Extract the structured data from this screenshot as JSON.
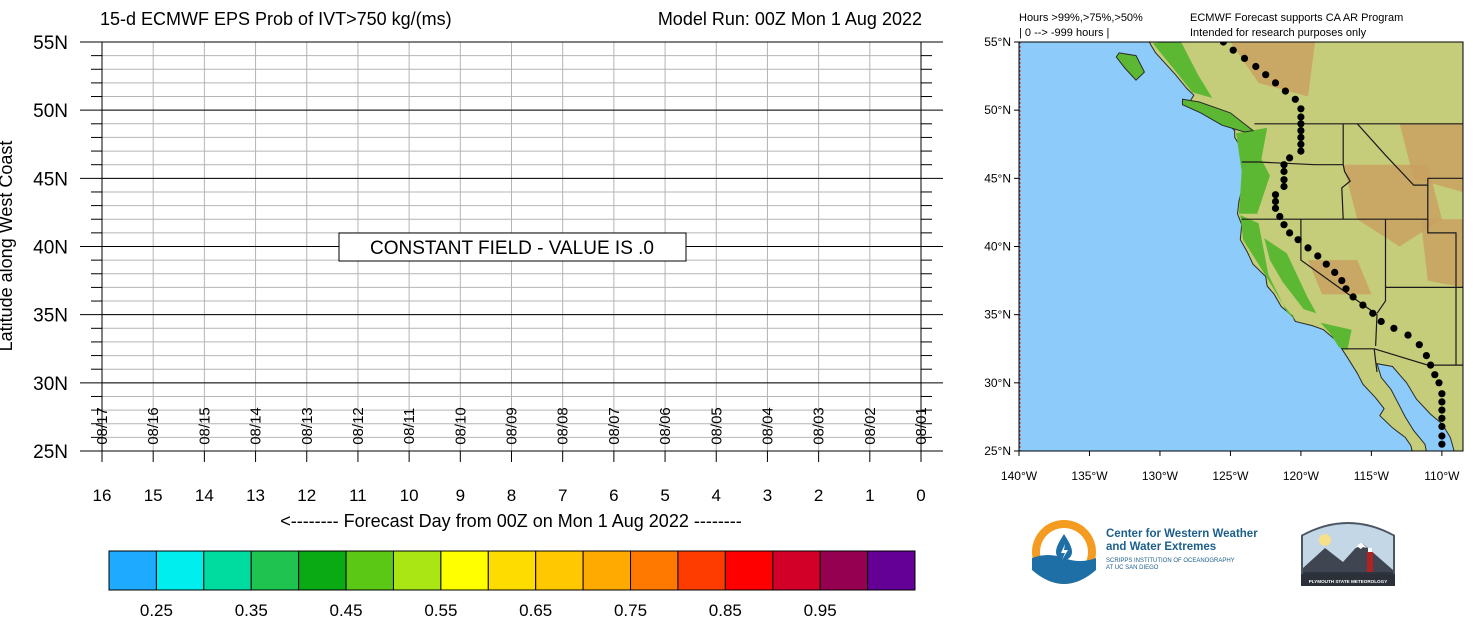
{
  "chart_data": [
    {
      "type": "heatmap",
      "title": "15-d ECMWF EPS Prob of IVT>750 kg/(ms)",
      "model_run": "Model Run: 00Z Mon 1 Aug 2022",
      "ylabel": "Latitude along West Coast",
      "xlabel": "<-------- Forecast Day from 00Z on Mon 1 Aug 2022 --------",
      "x_ticks": [
        "16",
        "15",
        "14",
        "13",
        "12",
        "11",
        "10",
        "9",
        "8",
        "7",
        "6",
        "5",
        "4",
        "3",
        "2",
        "1",
        "0"
      ],
      "x_dates": [
        "08/17",
        "08/16",
        "08/15",
        "08/14",
        "08/13",
        "08/12",
        "08/11",
        "08/10",
        "08/09",
        "08/08",
        "08/07",
        "08/06",
        "08/05",
        "08/04",
        "08/03",
        "08/02",
        "08/01"
      ],
      "y_ticks": [
        "55N",
        "50N",
        "45N",
        "40N",
        "35N",
        "30N",
        "25N"
      ],
      "xlim": [
        16,
        0
      ],
      "ylim": [
        25,
        55
      ],
      "annotation": "CONSTANT FIELD - VALUE IS .0",
      "values": [],
      "colorbar": {
        "labels": [
          "0.25",
          "0.35",
          "0.45",
          "0.55",
          "0.65",
          "0.75",
          "0.85",
          "0.95"
        ],
        "colors": [
          "#1eaaff",
          "#00eeee",
          "#00dca0",
          "#1ec350",
          "#0aaa14",
          "#5ac814",
          "#aae614",
          "#ffff00",
          "#ffdc00",
          "#ffc800",
          "#ffaa00",
          "#ff7800",
          "#ff3c00",
          "#ff0000",
          "#d20028",
          "#960050",
          "#640096"
        ]
      }
    },
    {
      "type": "map",
      "header_left": [
        "Hours >99%,>75%,>50%",
        "| 0 --> -999 hours        |"
      ],
      "header_right": [
        "ECMWF Forecast supports CA AR Program",
        "Intended for research purposes only"
      ],
      "lon_ticks": [
        "140°W",
        "135°W",
        "130°W",
        "125°W",
        "120°W",
        "115°W",
        "110°W"
      ],
      "lat_ticks": [
        "55°N",
        "50°N",
        "45°N",
        "40°N",
        "35°N",
        "30°N",
        "25°N"
      ],
      "lon_range": [
        -140,
        -108.5
      ],
      "lat_range": [
        25,
        55
      ],
      "colors": {
        "ocean": "#8ccbfa",
        "land_low": "#5cb833",
        "land_mid": "#c5cc7a",
        "land_high": "#c9a060",
        "points": "#000000"
      },
      "transect_points": [
        [
          -125.5,
          55.0
        ],
        [
          -124.8,
          54.4
        ],
        [
          -124.0,
          53.8
        ],
        [
          -123.2,
          53.2
        ],
        [
          -122.5,
          52.6
        ],
        [
          -121.8,
          52.0
        ],
        [
          -121.1,
          51.4
        ],
        [
          -120.4,
          50.8
        ],
        [
          -120.0,
          50.1
        ],
        [
          -120.0,
          49.5
        ],
        [
          -120.0,
          49.0
        ],
        [
          -120.0,
          48.5
        ],
        [
          -120.0,
          48.0
        ],
        [
          -120.0,
          47.5
        ],
        [
          -120.0,
          47.0
        ],
        [
          -120.8,
          46.5
        ],
        [
          -121.2,
          46.0
        ],
        [
          -121.2,
          45.5
        ],
        [
          -121.2,
          44.9
        ],
        [
          -121.2,
          44.4
        ],
        [
          -121.8,
          43.8
        ],
        [
          -121.8,
          43.3
        ],
        [
          -121.8,
          42.8
        ],
        [
          -121.5,
          42.2
        ],
        [
          -121.2,
          41.6
        ],
        [
          -120.8,
          41.0
        ],
        [
          -120.2,
          40.5
        ],
        [
          -119.5,
          39.9
        ],
        [
          -118.8,
          39.3
        ],
        [
          -118.2,
          38.7
        ],
        [
          -117.6,
          38.1
        ],
        [
          -117.1,
          37.5
        ],
        [
          -116.8,
          36.9
        ],
        [
          -116.3,
          36.3
        ],
        [
          -115.6,
          35.7
        ],
        [
          -114.9,
          35.1
        ],
        [
          -114.3,
          34.5
        ],
        [
          -113.4,
          34.0
        ],
        [
          -112.4,
          33.5
        ],
        [
          -111.6,
          32.8
        ],
        [
          -111.1,
          32.0
        ],
        [
          -110.8,
          31.3
        ],
        [
          -110.5,
          30.6
        ],
        [
          -110.2,
          30.0
        ],
        [
          -110.0,
          29.2
        ],
        [
          -110.0,
          28.6
        ],
        [
          -110.0,
          28.0
        ],
        [
          -110.0,
          27.4
        ],
        [
          -110.0,
          26.8
        ],
        [
          -110.0,
          26.1
        ],
        [
          -110.0,
          25.5
        ]
      ]
    }
  ],
  "logos": {
    "cw3e": {
      "title": [
        "Center for Western Weather",
        "and Water Extremes"
      ],
      "subtitle": [
        "SCRIPPS INSTITUTION OF OCEANOGRAPHY",
        "AT UC SAN DIEGO"
      ]
    },
    "psu": {
      "text": "PLYMOUTH STATE METEOROLOGY"
    }
  }
}
